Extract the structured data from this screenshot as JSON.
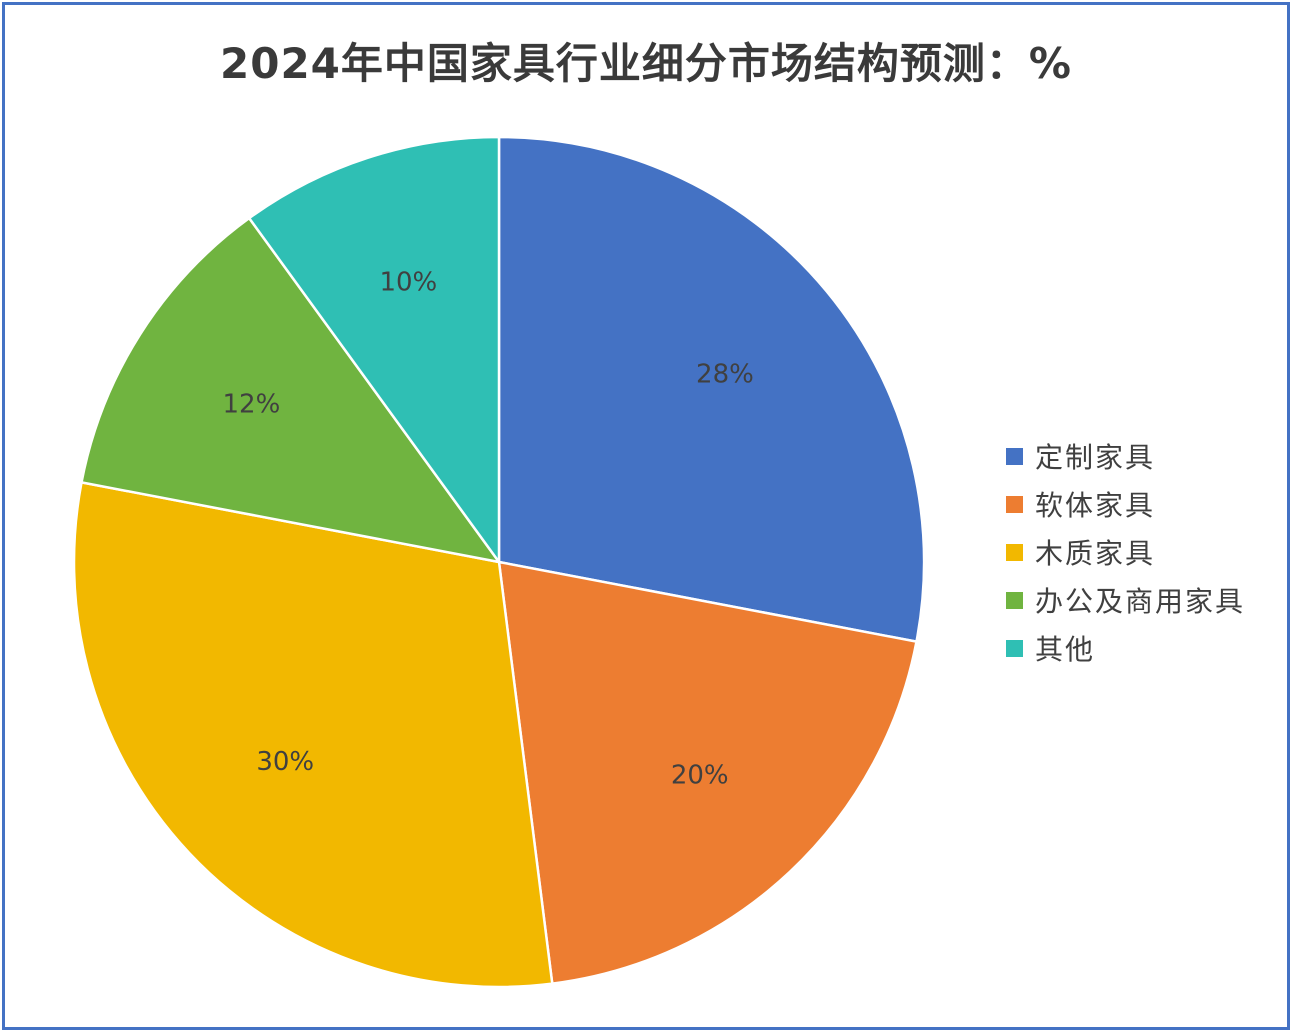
{
  "chart_data": {
    "type": "pie",
    "title": "2024年中国家具行业细分市场结构预测：%",
    "categories": [
      "定制家具",
      "软体家具",
      "木质家具",
      "办公及商用家具",
      "其他"
    ],
    "values": [
      28,
      20,
      30,
      12,
      10
    ],
    "labels": [
      "28%",
      "20%",
      "30%",
      "12%",
      "10%"
    ],
    "colors": [
      "#4472c4",
      "#ed7d31",
      "#f2b800",
      "#70b440",
      "#2fbfb4"
    ],
    "legend_position": "right",
    "start_angle": "top, clockwise"
  }
}
